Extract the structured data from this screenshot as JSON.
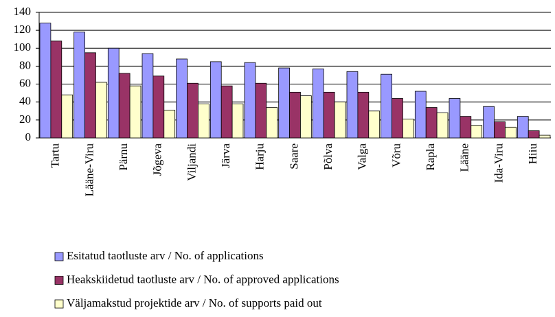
{
  "chart_data": {
    "type": "bar",
    "categories": [
      "Tartu",
      "Lääne-Viru",
      "Pärnu",
      "Jõgeva",
      "Viljandi",
      "Järva",
      "Harju",
      "Saare",
      "Põlva",
      "Valga",
      "Võru",
      "Rapla",
      "Lääne",
      "Ida-Viru",
      "Hiiu"
    ],
    "series": [
      {
        "name": "Esitatud taotluste arv / No. of applications",
        "color": "#9999ff",
        "values": [
          128,
          118,
          100,
          94,
          88,
          85,
          84,
          78,
          77,
          74,
          71,
          52,
          44,
          35,
          24
        ]
      },
      {
        "name": "Heakskiidetud taotluste arv / No. of approved applications",
        "color": "#993366",
        "values": [
          108,
          95,
          72,
          69,
          61,
          58,
          61,
          51,
          51,
          51,
          44,
          34,
          24,
          18,
          8
        ]
      },
      {
        "name": "Väljamakstud projektide arv / No. of supports paid out",
        "color": "#ffffcc",
        "values": [
          48,
          62,
          58,
          31,
          38,
          38,
          34,
          47,
          40,
          30,
          21,
          28,
          14,
          12,
          3
        ]
      }
    ],
    "ylim": [
      0,
      140
    ],
    "yticks": [
      0,
      20,
      40,
      60,
      80,
      100,
      120,
      140
    ],
    "grid": true
  }
}
